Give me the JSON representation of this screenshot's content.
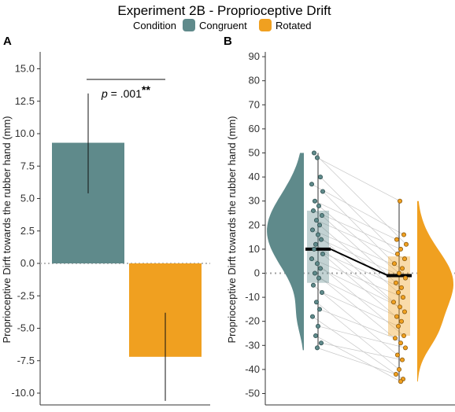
{
  "figure": {
    "title": "Experiment 2B - Proprioceptive Drift",
    "legend": {
      "title": "Condition",
      "items": [
        {
          "label": "Congruent",
          "color": "#5f8a8b"
        },
        {
          "label": "Rotated",
          "color": "#f0a020"
        }
      ]
    }
  },
  "chart_data": [
    {
      "panel": "A",
      "type": "bar",
      "categories": [
        "Congruent",
        "Rotated"
      ],
      "values": [
        9.3,
        -7.2
      ],
      "error_bars": [
        [
          5.4,
          13.1
        ],
        [
          -10.6,
          -3.8
        ]
      ],
      "colors": [
        "#5f8a8b",
        "#f0a020"
      ],
      "ylabel": "Proprioceptive Dirft towards the rubber hand (mm)",
      "ylim": [
        -10.7,
        16.0
      ],
      "yticks": [
        15.0,
        12.5,
        10.0,
        7.5,
        5.0,
        2.5,
        0.0,
        -2.5,
        -5.0,
        -7.5,
        -10.0
      ],
      "ytick_labels": [
        "15.0",
        "12.5",
        "10.0",
        "7.5",
        "5.0",
        "2.5",
        "0.0",
        "-2.5",
        "-5.0",
        "-7.5",
        "-10.0"
      ],
      "reference_line": 0,
      "annotation": {
        "p_symbol": "p",
        "p_text": " = .001",
        "stars": "**"
      }
    },
    {
      "panel": "B",
      "type": "scatter",
      "subtype": "raincloud (half-violin + boxplot + paired points)",
      "categories": [
        "Congruent",
        "Rotated"
      ],
      "colors": [
        "#5f8a8b",
        "#f0a020"
      ],
      "ylabel": "Proprioceptive Dirft towards the rubber hand (mm)",
      "ylim": [
        -52,
        92
      ],
      "yticks": [
        90,
        80,
        70,
        60,
        50,
        40,
        30,
        20,
        10,
        0,
        -10,
        -20,
        -30,
        -40,
        -50
      ],
      "ytick_labels": [
        "90",
        "80",
        "70",
        "60",
        "50",
        "40",
        "30",
        "20",
        "10",
        "0",
        "-10",
        "-20",
        "-30",
        "-40",
        "-50"
      ],
      "reference_line": 0,
      "mean_line": {
        "congruent": 10,
        "rotated": -1
      },
      "boxplots": [
        {
          "name": "Congruent",
          "q1": -4,
          "median": 10,
          "q3": 26,
          "whisker_low": -31,
          "whisker_high": 50
        },
        {
          "name": "Rotated",
          "q1": -26,
          "median": -1,
          "q3": 7,
          "whisker_low": -45,
          "whisker_high": 30
        }
      ],
      "paired_points": {
        "congruent": [
          50,
          48,
          40,
          37,
          34,
          30,
          28,
          26,
          24,
          22,
          20,
          18,
          16,
          14,
          12,
          10,
          8,
          6,
          4,
          2,
          0,
          -2,
          -5,
          -8,
          -12,
          -15,
          -18,
          -22,
          -26,
          -29,
          -31
        ],
        "rotated": [
          30,
          16,
          14,
          12,
          10,
          8,
          6,
          4,
          2,
          0,
          -2,
          -4,
          -6,
          -8,
          -10,
          -12,
          -14,
          -16,
          -18,
          -20,
          -22,
          -26,
          -27,
          -29,
          -31,
          -34,
          -36,
          -40,
          -42,
          -44,
          -45
        ]
      }
    }
  ]
}
